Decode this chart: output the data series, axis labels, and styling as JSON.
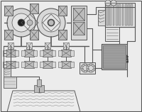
{
  "bg_color": "#ececec",
  "line_color": "#555555",
  "dark_color": "#222222",
  "mid_color": "#888888",
  "fill_light": "#d8d8d8",
  "fill_mid": "#bbbbbb",
  "fill_dark": "#999999",
  "fig_width": 2.0,
  "fig_height": 1.58,
  "dpi": 100
}
